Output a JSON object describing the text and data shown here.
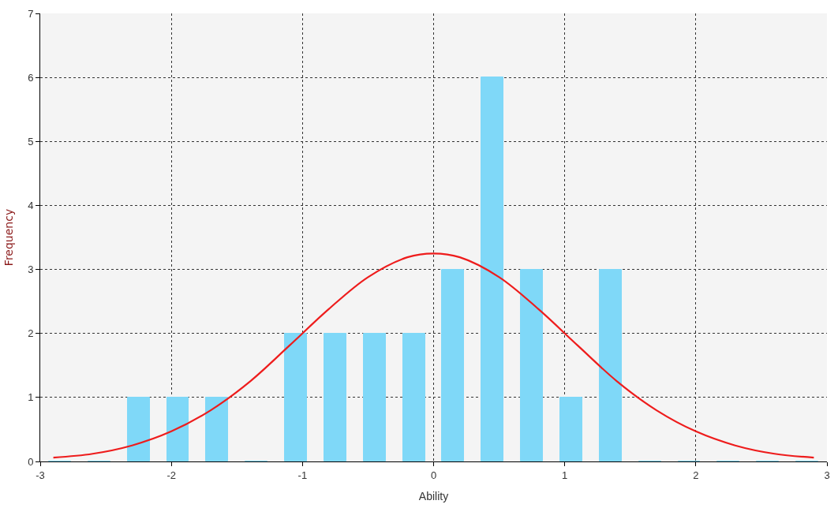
{
  "chart_data": {
    "type": "histogram",
    "xlabel": "Ability",
    "ylabel": "Frequency",
    "bins": [
      -3,
      -2.7,
      -2.4,
      -2.1,
      -1.8,
      -1.5,
      -1.2,
      -0.9,
      -0.6,
      -0.3,
      0,
      0.3,
      0.6,
      0.9,
      1.2,
      1.5,
      1.8,
      2.1,
      2.4,
      2.7,
      3
    ],
    "values": [
      0,
      0,
      1,
      1,
      1,
      0,
      2,
      2,
      2,
      2,
      3,
      6,
      3,
      1,
      3,
      0,
      0,
      0,
      0,
      0
    ],
    "color": "#7fd8f8",
    "series": [
      {
        "type": "line",
        "color": "#ee1c1c",
        "x": [
          -2.9,
          -2.6,
          -2.3,
          -2.0,
          -1.7,
          -1.4,
          -1.1,
          -0.8,
          -0.5,
          -0.2,
          0,
          0.2,
          0.5,
          0.8,
          1.1,
          1.4,
          1.7,
          2.0,
          2.3,
          2.6,
          2.9
        ],
        "values": [
          0.06,
          0.12,
          0.25,
          0.47,
          0.8,
          1.25,
          1.81,
          2.38,
          2.88,
          3.19,
          3.25,
          3.19,
          2.88,
          2.38,
          1.81,
          1.25,
          0.8,
          0.47,
          0.25,
          0.12,
          0.06
        ]
      }
    ],
    "xlim": [
      -3,
      3
    ],
    "xticks": [
      -3,
      -2,
      -1,
      0,
      1,
      2,
      3
    ],
    "ylim": [
      0,
      7
    ],
    "yticks": [
      0,
      1,
      2,
      3,
      4,
      5,
      6,
      7
    ],
    "grid": true,
    "marker": "none",
    "line_style": "solid"
  }
}
